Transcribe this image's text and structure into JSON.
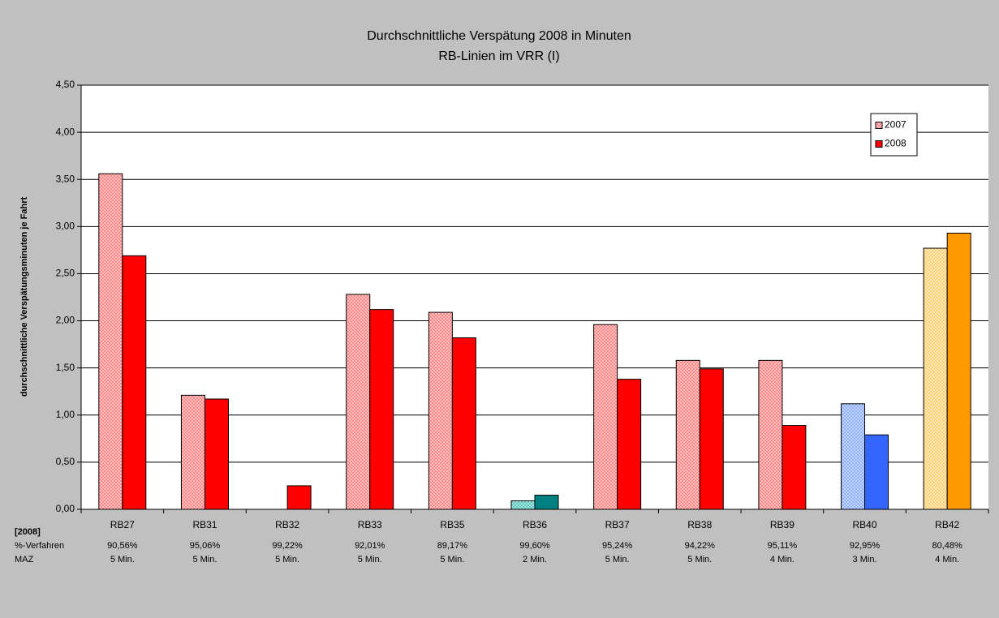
{
  "chart_data": {
    "type": "bar",
    "title": "Durchschnittliche Verspätung 2008 in Minuten",
    "subtitle": "RB-Linien im VRR (I)",
    "y_label": "durchschnittliche Verspätungsminuten je Fahrt",
    "categories": [
      "RB27",
      "RB31",
      "RB32",
      "RB33",
      "RB35",
      "RB36",
      "RB37",
      "RB38",
      "RB39",
      "RB40",
      "RB42"
    ],
    "series": [
      {
        "name": "2007",
        "color": "#ff8a8a",
        "fill_style": "dotted",
        "colors": [
          "#ff8a8a",
          "#ff8a8a",
          "#ff8a8a",
          "#ff8a8a",
          "#ff8a8a",
          "#5fc7c0",
          "#ff8a8a",
          "#ff8a8a",
          "#ff8a8a",
          "#8fb0ff",
          "#ffd27a"
        ],
        "values": [
          3.56,
          1.21,
          null,
          2.28,
          2.09,
          0.09,
          1.96,
          1.58,
          1.58,
          1.12,
          2.77
        ]
      },
      {
        "name": "2008",
        "color": "#ff0000",
        "fill_style": "solid",
        "colors": [
          "#ff0000",
          "#ff0000",
          "#ff0000",
          "#ff0000",
          "#ff0000",
          "#008080",
          "#ff0000",
          "#ff0000",
          "#ff0000",
          "#3366ff",
          "#ff9900"
        ],
        "values": [
          2.69,
          1.17,
          0.25,
          2.12,
          1.82,
          0.15,
          1.38,
          1.49,
          0.89,
          0.79,
          2.93
        ]
      }
    ],
    "ylim": [
      0,
      4.5
    ],
    "yticks": [
      {
        "value": 0,
        "label": "0,00"
      },
      {
        "value": 0.5,
        "label": "0,50"
      },
      {
        "value": 1,
        "label": "1,00"
      },
      {
        "value": 1.5,
        "label": "1,50"
      },
      {
        "value": 2,
        "label": "2,00"
      },
      {
        "value": 2.5,
        "label": "2,50"
      },
      {
        "value": 3,
        "label": "3,00"
      },
      {
        "value": 3.5,
        "label": "3,50"
      },
      {
        "value": 4,
        "label": "4,00"
      },
      {
        "value": 4.5,
        "label": "4,50"
      }
    ],
    "grid": true,
    "legend": "upper right",
    "footer_table": {
      "header": "[2008]",
      "row_labels": [
        "%-Verfahren",
        "MAZ"
      ],
      "rows": [
        [
          "90,56%",
          "95,06%",
          "99,22%",
          "92,01%",
          "89,17%",
          "99,60%",
          "95,24%",
          "94,22%",
          "95,11%",
          "92,95%",
          "80,48%"
        ],
        [
          "5 Min.",
          "5 Min.",
          "5 Min.",
          "5 Min.",
          "5 Min.",
          "2 Min.",
          "5 Min.",
          "5 Min.",
          "4 Min.",
          "3 Min.",
          "4 Min."
        ]
      ]
    }
  }
}
